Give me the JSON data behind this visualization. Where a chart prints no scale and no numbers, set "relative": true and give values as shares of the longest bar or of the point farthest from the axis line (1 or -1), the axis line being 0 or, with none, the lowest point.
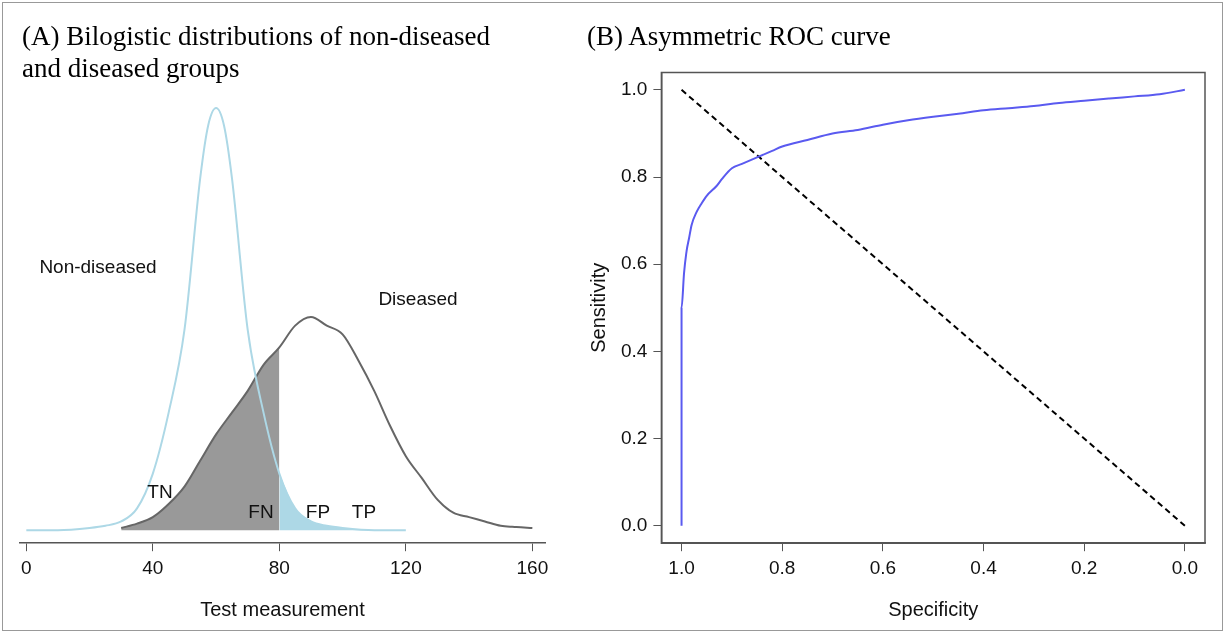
{
  "chart_data": [
    {
      "type": "line",
      "title": "(A) Bilogistic distributions of non-diseased and diseased groups",
      "xlabel": "Test measurement",
      "relative": true,
      "xlim": [
        -2,
        164
      ],
      "xticks": [
        0,
        40,
        80,
        120,
        160
      ],
      "grid": false,
      "legend": false,
      "tick_labels": "x",
      "series": [
        {
          "type": "area",
          "color": "#999999",
          "x": [
            30,
            35,
            40,
            45,
            50,
            55,
            60,
            65,
            70,
            75,
            80
          ],
          "values": [
            0.035,
            0.045,
            0.06,
            0.09,
            0.13,
            0.19,
            0.25,
            0.3,
            0.35,
            0.41,
            0.45
          ]
        },
        {
          "type": "area",
          "color": "#add8e6",
          "x": [
            80,
            85,
            90,
            95,
            100,
            110,
            120
          ],
          "values": [
            0.16,
            0.08,
            0.05,
            0.04,
            0.035,
            0.03,
            0.03
          ]
        },
        {
          "type": "line",
          "name": "Non-diseased",
          "color": "#add8e6",
          "x": [
            0,
            10,
            20,
            25,
            30,
            35,
            40,
            45,
            50,
            55,
            57.5,
            60,
            62.5,
            65,
            70,
            75,
            80,
            85,
            90,
            95,
            100,
            110,
            120
          ],
          "values": [
            0.03,
            0.03,
            0.035,
            0.04,
            0.05,
            0.08,
            0.16,
            0.3,
            0.49,
            0.84,
            0.96,
            1,
            0.96,
            0.84,
            0.49,
            0.3,
            0.16,
            0.08,
            0.05,
            0.04,
            0.035,
            0.03,
            0.03
          ]
        },
        {
          "type": "line",
          "name": "Diseased",
          "color": "#666666",
          "x": [
            30,
            35,
            40,
            45,
            50,
            55,
            60,
            65,
            70,
            75,
            80,
            85,
            90,
            95,
            100,
            105,
            110,
            115,
            120,
            125,
            130,
            135,
            140,
            145,
            150,
            155,
            160
          ],
          "values": [
            0.035,
            0.045,
            0.06,
            0.09,
            0.13,
            0.19,
            0.25,
            0.3,
            0.35,
            0.41,
            0.45,
            0.5,
            0.52,
            0.5,
            0.48,
            0.42,
            0.35,
            0.27,
            0.2,
            0.15,
            0.1,
            0.07,
            0.06,
            0.05,
            0.04,
            0.037,
            0.035
          ]
        }
      ],
      "annotations": [
        "TN",
        "FN",
        "FP",
        "TP"
      ]
    },
    {
      "type": "line",
      "title": "(B) Asymmetric ROC curve",
      "xlabel": "Specificity",
      "ylabel": "Sensitivity",
      "xlim": [
        1.04,
        -0.04
      ],
      "ylim": [
        -0.04,
        1.04
      ],
      "xticks": [
        {
          "value": 1,
          "label": "1.0"
        },
        {
          "value": 0.8,
          "label": "0.8"
        },
        {
          "value": 0.6,
          "label": "0.6"
        },
        {
          "value": 0.4,
          "label": "0.4"
        },
        {
          "value": 0.2,
          "label": "0.2"
        },
        {
          "value": 0,
          "label": "0.0"
        }
      ],
      "yticks": [
        {
          "value": 0,
          "label": "0.0"
        },
        {
          "value": 0.2,
          "label": "0.2"
        },
        {
          "value": 0.4,
          "label": "0.4"
        },
        {
          "value": 0.6,
          "label": "0.6"
        },
        {
          "value": 0.8,
          "label": "0.8"
        },
        {
          "value": 1,
          "label": "1.0"
        }
      ],
      "grid": false,
      "legend": false,
      "series": [
        {
          "type": "line",
          "color": "#5a5af0",
          "x": [
            1,
            1,
            0.995,
            0.99,
            0.985,
            0.98,
            0.97,
            0.96,
            0.95,
            0.93,
            0.92,
            0.9,
            0.88,
            0.85,
            0.82,
            0.8,
            0.75,
            0.7,
            0.65,
            0.6,
            0.55,
            0.5,
            0.45,
            0.4,
            0.35,
            0.3,
            0.25,
            0.2,
            0.15,
            0.1,
            0.05,
            0
          ],
          "values": [
            0,
            0.5,
            0.58,
            0.63,
            0.66,
            0.69,
            0.72,
            0.74,
            0.757,
            0.78,
            0.795,
            0.82,
            0.83,
            0.845,
            0.86,
            0.87,
            0.885,
            0.9,
            0.908,
            0.92,
            0.93,
            0.938,
            0.945,
            0.953,
            0.958,
            0.963,
            0.97,
            0.975,
            0.98,
            0.985,
            0.99,
            1
          ]
        },
        {
          "type": "line",
          "color": "#000000",
          "line_style": "dashed",
          "x": [
            1,
            0
          ],
          "values": [
            1,
            0
          ]
        }
      ]
    }
  ]
}
